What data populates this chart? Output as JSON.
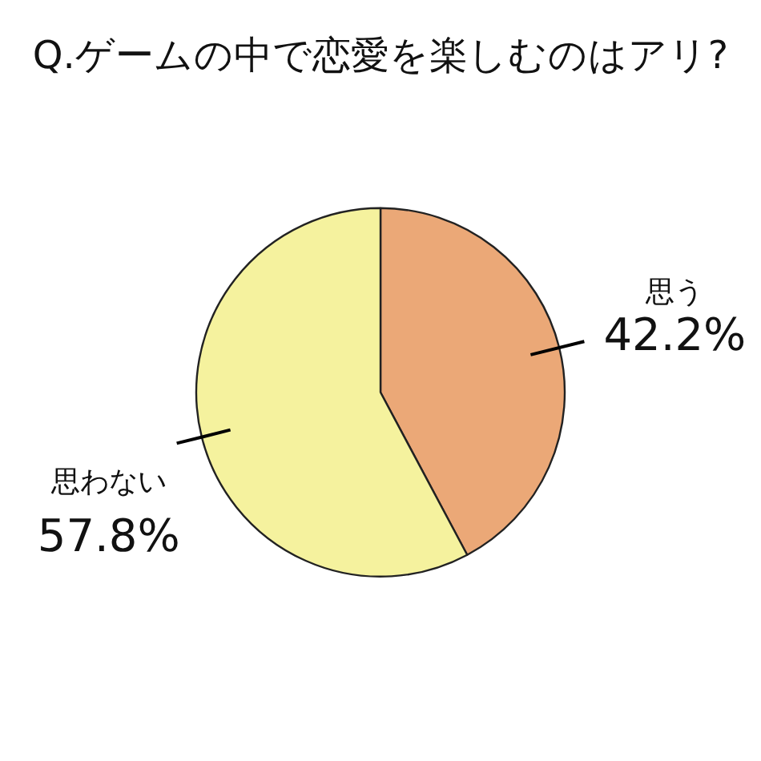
{
  "chart_data": {
    "type": "pie",
    "title": "Q.ゲームの中で恋愛を楽しむのはアリ?",
    "categories": [
      "思う",
      "思わない"
    ],
    "values": [
      42.2,
      57.8
    ],
    "colors": [
      "#eba877",
      "#f5f29e"
    ],
    "value_labels": [
      "42.2%",
      "57.8%"
    ]
  }
}
